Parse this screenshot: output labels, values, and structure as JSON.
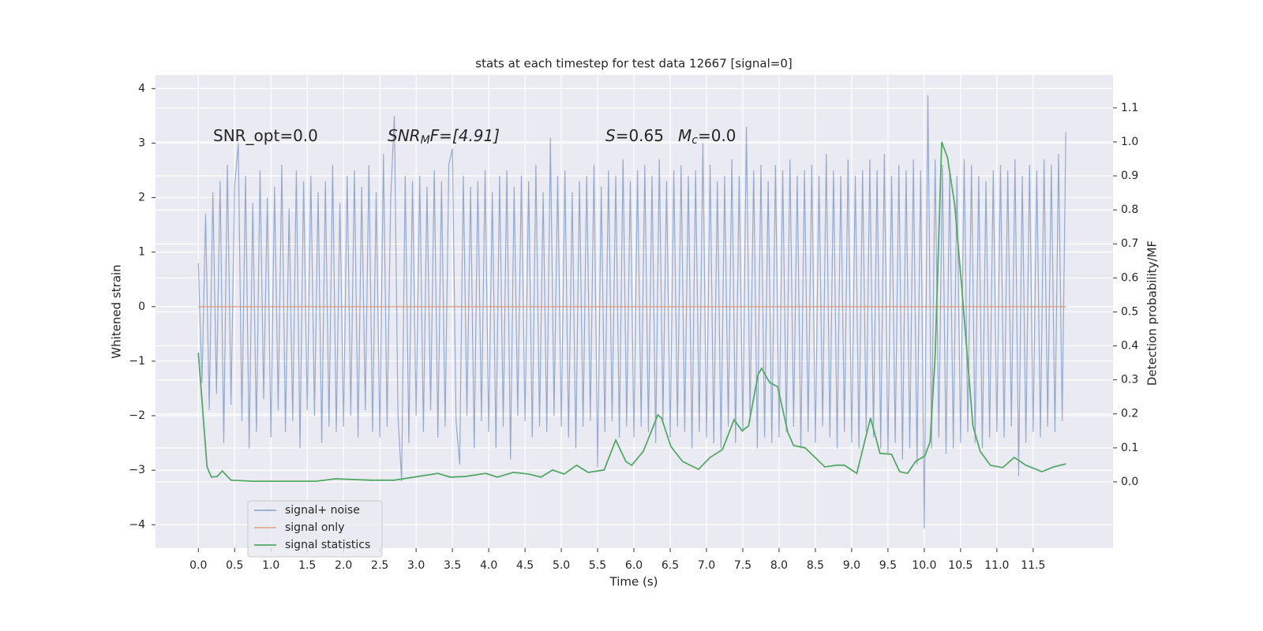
{
  "chart_data": {
    "type": "line",
    "title": "stats at each timestep for test data 12667 [signal=0]",
    "x_label": "Time (s)",
    "y_label": "Whitened strain",
    "y2_label": "Detection probability/MF",
    "grid": true,
    "legend": "lower left",
    "xlim": [
      -0.59,
      12.6
    ],
    "ylim": [
      -4.43,
      4.25
    ],
    "y2lim": [
      -0.195,
      1.197
    ],
    "xticks": [
      {
        "value": 0,
        "label": "0.0"
      },
      0.5,
      {
        "value": 1,
        "label": "1.0"
      },
      1.5,
      {
        "value": 2,
        "label": "2.0"
      },
      2.5,
      {
        "value": 3,
        "label": "3.0"
      },
      3.5,
      {
        "value": 4,
        "label": "4.0"
      },
      4.5,
      {
        "value": 5,
        "label": "5.0"
      },
      5.5,
      {
        "value": 6,
        "label": "6.0"
      },
      6.5,
      {
        "value": 7,
        "label": "7.0"
      },
      7.5,
      {
        "value": 8,
        "label": "8.0"
      },
      8.5,
      {
        "value": 9,
        "label": "9.0"
      },
      9.5,
      {
        "value": 10,
        "label": "10.0"
      },
      10.5,
      {
        "value": 11,
        "label": "11.0"
      },
      11.5
    ],
    "yticks": [
      {
        "value": -4,
        "label": "−4"
      },
      {
        "value": -3,
        "label": "−3"
      },
      {
        "value": -2,
        "label": "−2"
      },
      {
        "value": -1,
        "label": "−1"
      },
      0,
      1,
      2,
      3,
      4
    ],
    "y2ticks": [
      {
        "value": 0,
        "label": "0.0"
      },
      0.1,
      0.2,
      0.3,
      0.4,
      0.5,
      0.6,
      0.7,
      0.8,
      0.9,
      {
        "value": 1,
        "label": "1.0"
      },
      1.1
    ],
    "annotations": [
      {
        "text": "SNR_opt=0.0"
      },
      {
        "symbol": "SNR",
        "subscript": "M",
        "rest": "F=[4.91]"
      },
      {
        "symbol": "S",
        "rest": "=0.65"
      },
      {
        "symbol": "M",
        "subscript": "c",
        "rest": "=0.0"
      }
    ],
    "series": [
      {
        "name": "signal+ noise",
        "color": "#4c72b0",
        "x": [
          0,
          0.05,
          0.1,
          0.15,
          0.2,
          0.25,
          0.3,
          0.35,
          0.4,
          0.45,
          0.5,
          0.55,
          0.6,
          0.65,
          0.7,
          0.75,
          0.8,
          0.85,
          0.9,
          0.95,
          1,
          1.05,
          1.1,
          1.15,
          1.2,
          1.25,
          1.3,
          1.35,
          1.4,
          1.45,
          1.5,
          1.55,
          1.6,
          1.65,
          1.7,
          1.75,
          1.8,
          1.85,
          1.9,
          1.95,
          2,
          2.05,
          2.1,
          2.15,
          2.2,
          2.25,
          2.3,
          2.35,
          2.4,
          2.45,
          2.5,
          2.55,
          2.6,
          2.65,
          2.7,
          2.75,
          2.8,
          2.85,
          2.9,
          2.95,
          3,
          3.05,
          3.1,
          3.15,
          3.2,
          3.25,
          3.3,
          3.35,
          3.4,
          3.45,
          3.5,
          3.55,
          3.6,
          3.65,
          3.7,
          3.75,
          3.8,
          3.85,
          3.9,
          3.95,
          4,
          4.05,
          4.1,
          4.15,
          4.2,
          4.25,
          4.3,
          4.35,
          4.4,
          4.45,
          4.5,
          4.55,
          4.6,
          4.65,
          4.7,
          4.75,
          4.8,
          4.85,
          4.9,
          4.95,
          5,
          5.05,
          5.1,
          5.15,
          5.2,
          5.25,
          5.3,
          5.35,
          5.4,
          5.45,
          5.5,
          5.55,
          5.6,
          5.65,
          5.7,
          5.75,
          5.8,
          5.85,
          5.9,
          5.95,
          6,
          6.05,
          6.1,
          6.15,
          6.2,
          6.25,
          6.3,
          6.35,
          6.4,
          6.45,
          6.5,
          6.55,
          6.6,
          6.65,
          6.7,
          6.75,
          6.8,
          6.85,
          6.9,
          6.95,
          7,
          7.05,
          7.1,
          7.15,
          7.2,
          7.25,
          7.3,
          7.35,
          7.4,
          7.45,
          7.5,
          7.55,
          7.6,
          7.65,
          7.7,
          7.75,
          7.8,
          7.85,
          7.9,
          7.95,
          8,
          8.05,
          8.1,
          8.15,
          8.2,
          8.25,
          8.3,
          8.35,
          8.4,
          8.45,
          8.5,
          8.55,
          8.6,
          8.65,
          8.7,
          8.75,
          8.8,
          8.85,
          8.9,
          8.95,
          9,
          9.05,
          9.1,
          9.15,
          9.2,
          9.25,
          9.3,
          9.35,
          9.4,
          9.45,
          9.5,
          9.55,
          9.6,
          9.65,
          9.7,
          9.75,
          9.8,
          9.85,
          9.9,
          9.95,
          10,
          10.05,
          10.1,
          10.15,
          10.2,
          10.25,
          10.3,
          10.35,
          10.4,
          10.45,
          10.5,
          10.55,
          10.6,
          10.65,
          10.7,
          10.75,
          10.8,
          10.85,
          10.9,
          10.95,
          11,
          11.05,
          11.1,
          11.15,
          11.2,
          11.25,
          11.3,
          11.35,
          11.4,
          11.45,
          11.5,
          11.55,
          11.6,
          11.65,
          11.7,
          11.75,
          11.8,
          11.85,
          11.9,
          11.95
        ],
        "values": [
          0.8,
          -1.4,
          1.7,
          -1.9,
          2.1,
          -1.6,
          2.3,
          -2.5,
          2.6,
          -1.8,
          2.2,
          3.0,
          -2.1,
          2.4,
          -2.6,
          1.9,
          -2.3,
          2.5,
          -1.7,
          2.0,
          -2.4,
          2.2,
          -1.9,
          2.6,
          -2.3,
          1.8,
          -2.1,
          2.5,
          -2.6,
          2.3,
          -1.9,
          2.4,
          -2.0,
          2.1,
          -2.5,
          2.3,
          -2.2,
          2.6,
          -2.3,
          1.9,
          -2.2,
          2.4,
          -2.0,
          2.5,
          -2.4,
          2.2,
          -1.9,
          2.6,
          -2.3,
          2.1,
          -2.4,
          2.8,
          -2.2,
          2.0,
          3.5,
          -2.0,
          -3.2,
          2.4,
          -2.5,
          2.3,
          -2.0,
          2.4,
          -2.3,
          2.2,
          -1.9,
          2.5,
          -2.4,
          2.3,
          -2.2,
          2.6,
          2.9,
          -2.1,
          -2.9,
          2.4,
          -2.0,
          2.2,
          -2.6,
          2.3,
          -2.1,
          2.5,
          -2.3,
          2.1,
          -2.6,
          2.4,
          -2.2,
          2.5,
          -2.8,
          2.2,
          -2.0,
          2.4,
          -2.1,
          2.3,
          -2.4,
          2.6,
          -2.2,
          2.1,
          -2.3,
          3.1,
          -2.0,
          2.4,
          -2.2,
          2.5,
          -2.4,
          2.1,
          -2.6,
          2.3,
          -2.2,
          2.4,
          -2.1,
          2.6,
          -2.95,
          2.2,
          -2.3,
          2.5,
          -2.1,
          2.4,
          -2.4,
          2.7,
          -2.2,
          2.3,
          -2.4,
          2.5,
          -2.2,
          2.6,
          -2.3,
          2.4,
          -2.5,
          2.7,
          -2.1,
          2.3,
          -2.4,
          2.5,
          -2.2,
          2.6,
          -2.3,
          2.4,
          -2.6,
          2.5,
          -2.3,
          3.0,
          -2.4,
          2.6,
          -2.5,
          2.3,
          -2.6,
          2.4,
          -2.2,
          2.7,
          -2.5,
          2.4,
          -2.3,
          3.3,
          -2.1,
          2.5,
          -2.6,
          2.6,
          -2.4,
          2.3,
          -2.5,
          2.6,
          -2.4,
          2.5,
          -2.3,
          2.7,
          -2.2,
          2.4,
          -2.6,
          2.5,
          -2.3,
          2.6,
          -2.5,
          2.4,
          -2.2,
          2.8,
          -2.4,
          2.5,
          -2.6,
          2.4,
          -2.3,
          2.7,
          -2.5,
          2.4,
          -2.6,
          2.5,
          -2.3,
          2.7,
          -2.4,
          2.5,
          -2.6,
          2.8,
          -2.7,
          2.4,
          -2.5,
          2.6,
          -2.8,
          2.5,
          -2.6,
          2.7,
          -2.9,
          2.5,
          -4.07,
          3.88,
          -2.6,
          2.7,
          -2.4,
          2.6,
          -2.7,
          2.5,
          -2.6,
          2.4,
          -2.5,
          2.7,
          -2.3,
          2.6,
          -2.5,
          2.4,
          -2.6,
          2.3,
          -2.4,
          2.5,
          -2.3,
          2.6,
          -2.4,
          2.5,
          -2.2,
          2.7,
          -3.1,
          2.4,
          -2.5,
          2.6,
          -2.3,
          2.5,
          -2.4,
          2.7,
          -2.2,
          2.6,
          -2.3,
          2.8,
          -2.1,
          3.2
        ]
      },
      {
        "name": "signal only",
        "color": "#dd8452",
        "x": [
          0,
          11.95
        ],
        "values": [
          0,
          0
        ]
      },
      {
        "name": "signal statistics",
        "color": "#55a868",
        "axis": "y2",
        "x": [
          0,
          0.12,
          0.18,
          0.26,
          0.33,
          0.45,
          0.75,
          1.62,
          1.89,
          2.38,
          2.7,
          3.03,
          3.3,
          3.47,
          3.68,
          3.96,
          4.12,
          4.34,
          4.55,
          4.72,
          4.88,
          5.04,
          5.21,
          5.37,
          5.59,
          5.75,
          5.89,
          5.97,
          6.13,
          6.33,
          6.38,
          6.51,
          6.67,
          6.89,
          7.05,
          7.22,
          7.38,
          7.49,
          7.58,
          7.71,
          7.76,
          7.87,
          7.98,
          8.12,
          8.2,
          8.36,
          8.63,
          8.79,
          8.9,
          9.07,
          9.26,
          9.39,
          9.55,
          9.66,
          9.77,
          9.88,
          10.01,
          10.08,
          10.15,
          10.24,
          10.32,
          10.42,
          10.53,
          10.67,
          10.77,
          10.91,
          11.08,
          11.24,
          11.4,
          11.62,
          11.78,
          11.95
        ],
        "values": [
          0.38,
          0.044,
          0.014,
          0.016,
          0.032,
          0.005,
          0.002,
          0.002,
          0.009,
          0.005,
          0.005,
          0.016,
          0.025,
          0.014,
          0.016,
          0.025,
          0.014,
          0.028,
          0.023,
          0.014,
          0.035,
          0.023,
          0.049,
          0.028,
          0.035,
          0.123,
          0.06,
          0.049,
          0.09,
          0.197,
          0.188,
          0.104,
          0.06,
          0.037,
          0.072,
          0.095,
          0.183,
          0.15,
          0.165,
          0.316,
          0.334,
          0.292,
          0.28,
          0.146,
          0.107,
          0.1,
          0.044,
          0.049,
          0.049,
          0.025,
          0.188,
          0.084,
          0.081,
          0.03,
          0.025,
          0.06,
          0.077,
          0.118,
          0.37,
          1.0,
          0.954,
          0.814,
          0.536,
          0.165,
          0.09,
          0.049,
          0.042,
          0.072,
          0.049,
          0.03,
          0.044,
          0.053
        ]
      }
    ]
  }
}
